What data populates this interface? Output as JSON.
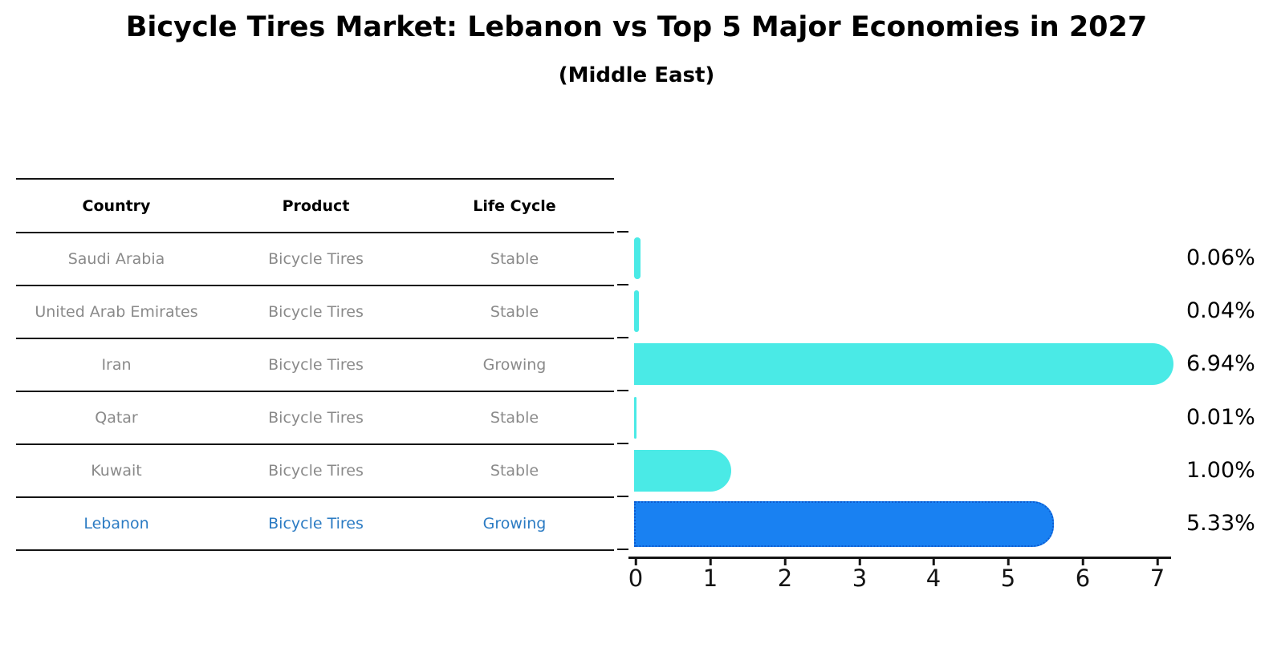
{
  "title": "Bicycle Tires Market: Lebanon vs Top 5 Major Economies in 2027",
  "subtitle": "(Middle East)",
  "table": {
    "headers": [
      "Country",
      "Product",
      "Life Cycle"
    ],
    "rows": [
      {
        "country": "Saudi Arabia",
        "product": "Bicycle Tires",
        "life_cycle": "Stable",
        "highlight": false
      },
      {
        "country": "United Arab Emirates",
        "product": "Bicycle Tires",
        "life_cycle": "Stable",
        "highlight": false
      },
      {
        "country": "Iran",
        "product": "Bicycle Tires",
        "life_cycle": "Growing",
        "highlight": false
      },
      {
        "country": "Qatar",
        "product": "Bicycle Tires",
        "life_cycle": "Stable",
        "highlight": false
      },
      {
        "country": "Kuwait",
        "product": "Bicycle Tires",
        "life_cycle": "Stable",
        "highlight": false
      },
      {
        "country": "Lebanon",
        "product": "Bicycle Tires",
        "life_cycle": "Growing",
        "highlight": true
      }
    ]
  },
  "chart_data": {
    "type": "bar",
    "orientation": "horizontal",
    "title": "Bicycle Tires Market: Lebanon vs Top 5 Major Economies in 2027",
    "subtitle": "(Middle East)",
    "categories": [
      "Saudi Arabia",
      "United Arab Emirates",
      "Iran",
      "Qatar",
      "Kuwait",
      "Lebanon"
    ],
    "values": [
      0.06,
      0.04,
      6.94,
      0.01,
      1.0,
      5.33
    ],
    "labels": [
      "0.06%",
      "0.04%",
      "6.94%",
      "0.01%",
      "1.00%",
      "5.33%"
    ],
    "highlight_index": 5,
    "xlim": [
      0,
      7
    ],
    "x_ticks": [
      "0",
      "1",
      "2",
      "3",
      "4",
      "5",
      "6",
      "7"
    ],
    "grid": false,
    "legend": "none"
  },
  "colors": {
    "bar_default": "#4aeae6",
    "bar_highlight": "#1981f2",
    "highlight_border": "#0d5bd0",
    "highlight_text": "#2b7bc3",
    "row_text": "#8a8a8a",
    "header_text": "#000000",
    "axis": "#141414"
  }
}
